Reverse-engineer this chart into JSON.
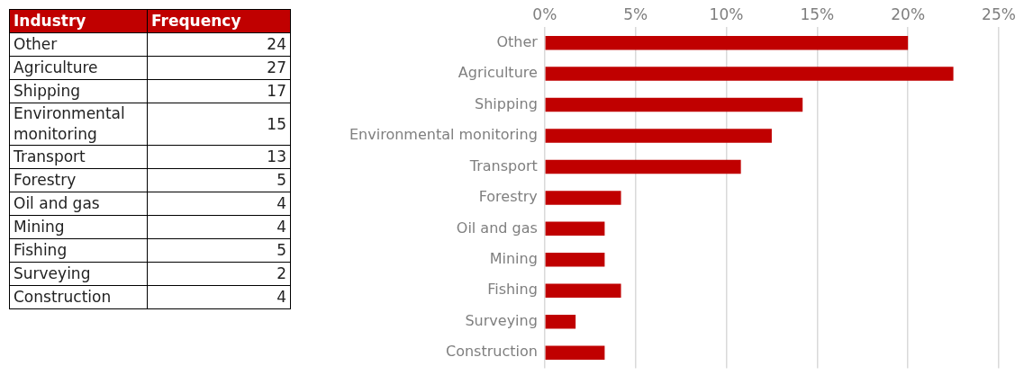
{
  "chart_data": [
    {
      "type": "other",
      "xlabel": "Industry",
      "ylabel": "Frequency",
      "data_labels": true,
      "categories": [
        "Other",
        "Agriculture",
        "Shipping",
        "Environmental monitoring",
        "Transport",
        "Forestry",
        "Oil and gas",
        "Mining",
        "Fishing",
        "Surveying",
        "Construction"
      ],
      "values": [
        24,
        27,
        17,
        15,
        13,
        5,
        4,
        4,
        5,
        2,
        4
      ]
    },
    {
      "type": "bar",
      "orientation": "horizontal",
      "color": "#c00000",
      "categories": [
        "Other",
        "Agriculture",
        "Shipping",
        "Environmental monitoring",
        "Transport",
        "Forestry",
        "Oil and gas",
        "Mining",
        "Fishing",
        "Surveying",
        "Construction"
      ],
      "values": [
        20,
        22.5,
        14.2,
        12.5,
        10.8,
        4.2,
        3.3,
        3.3,
        4.2,
        1.7,
        3.3
      ],
      "xlim": [
        0,
        25
      ],
      "xticks": [
        {
          "value": 0,
          "label": "0%"
        },
        {
          "value": 5,
          "label": "5%"
        },
        {
          "value": 10,
          "label": "10%"
        },
        {
          "value": 15,
          "label": "15%"
        },
        {
          "value": 20,
          "label": "20%"
        },
        {
          "value": 25,
          "label": "25%"
        }
      ],
      "grid": "x"
    }
  ]
}
